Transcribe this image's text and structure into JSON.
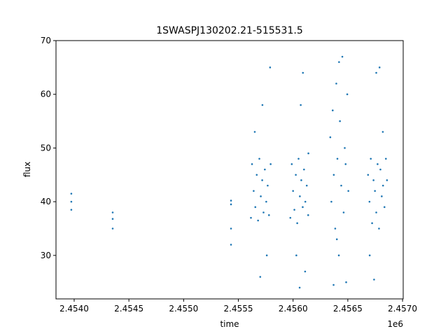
{
  "chart_data": {
    "type": "scatter",
    "title": "1SWASPJ130202.21-515531.5",
    "x_label": "time",
    "y_label": "flux",
    "x_offset_label": "1e6",
    "xlim": [
      2453834,
      2457006
    ],
    "ylim": [
      21.9,
      70
    ],
    "xticks": [
      {
        "value": 2454000,
        "label": "2.4540"
      },
      {
        "value": 2454500,
        "label": "2.4545"
      },
      {
        "value": 2455000,
        "label": "2.4550"
      },
      {
        "value": 2455500,
        "label": "2.4555"
      },
      {
        "value": 2456000,
        "label": "2.4560"
      },
      {
        "value": 2456500,
        "label": "2.4565"
      },
      {
        "value": 2457000,
        "label": "2.4570"
      }
    ],
    "yticks": [
      30,
      40,
      50,
      60,
      70
    ],
    "grid": false,
    "series": [
      {
        "color": "#1f77b4",
        "x": [
          2453974,
          2453974,
          2453974,
          2454352,
          2454352,
          2454352,
          2455433,
          2455433,
          2455433,
          2455433,
          2455615,
          2455625,
          2455640,
          2455655,
          2455668,
          2455680,
          2455692,
          2455705,
          2455718,
          2455730,
          2455742,
          2455755,
          2455768,
          2455780,
          2455795,
          2455700,
          2455720,
          2455790,
          2455650,
          2455760,
          2455975,
          2455988,
          2456000,
          2456012,
          2456025,
          2456038,
          2456050,
          2456062,
          2456075,
          2456088,
          2456100,
          2456112,
          2456125,
          2456138,
          2456140,
          2456060,
          2456090,
          2456070,
          2456030,
          2456110,
          2456340,
          2456350,
          2456362,
          2456372,
          2456385,
          2456395,
          2456405,
          2456418,
          2456428,
          2456440,
          2456450,
          2456462,
          2456472,
          2456485,
          2456495,
          2456505,
          2456370,
          2456420,
          2456480,
          2456400,
          2456685,
          2456698,
          2456710,
          2456722,
          2456735,
          2456748,
          2456760,
          2456772,
          2456785,
          2456798,
          2456810,
          2456822,
          2456835,
          2456848,
          2456858,
          2456740,
          2456790,
          2456760,
          2456820,
          2456700
        ],
        "y": [
          38.5,
          40,
          41.5,
          35,
          36.8,
          38,
          32,
          35,
          39.5,
          40.2,
          37,
          47,
          42,
          39,
          45,
          36.5,
          48,
          41,
          44,
          38,
          46,
          40,
          43,
          37.5,
          47,
          26,
          58,
          65,
          53,
          30,
          37,
          47,
          42,
          38.5,
          45,
          36,
          48,
          41,
          44,
          39,
          46,
          40,
          43,
          37.5,
          49,
          24,
          64,
          58,
          30,
          27,
          52,
          40,
          57,
          45,
          35,
          62,
          48,
          30,
          55,
          43,
          67,
          38,
          50,
          25,
          60,
          42,
          24.5,
          66,
          47,
          33,
          45,
          40,
          48,
          36,
          44,
          42,
          38,
          47,
          35,
          46,
          41,
          43,
          39,
          48,
          44,
          25.5,
          65,
          64,
          53,
          30
        ]
      }
    ]
  }
}
